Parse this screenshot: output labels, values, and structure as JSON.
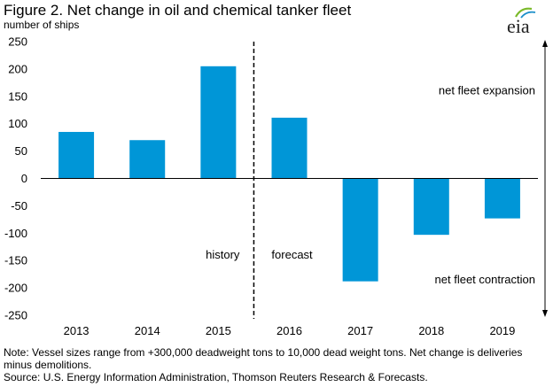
{
  "header": {
    "title": "Figure 2. Net change in oil and chemical tanker fleet",
    "subtitle": "number of ships",
    "logo_text": "eia"
  },
  "footer": {
    "note": "Note: Vessel sizes range from +300,000 deadweight tons to 10,000 dead weight tons. Net change is deliveries minus demolitions.",
    "source": "Source: U.S. Energy Information Administration, Thomson Reuters Research & Forecasts."
  },
  "colors": {
    "bar": "#0096d7",
    "logo_green": "#7ab929",
    "logo_blue": "#1a8ec9"
  },
  "chart_data": {
    "type": "bar",
    "title": "Figure 2. Net change in oil and chemical tanker fleet",
    "ylabel": "number of ships",
    "categories": [
      "2013",
      "2014",
      "2015",
      "2016",
      "2017",
      "2018",
      "2019"
    ],
    "values": [
      85,
      70,
      205,
      111,
      -188,
      -103,
      -73
    ],
    "ylim": [
      -250,
      250
    ],
    "yticks": [
      "250",
      "200",
      "150",
      "100",
      "50",
      "0",
      "-50",
      "-100",
      "-150",
      "-200",
      "-250"
    ],
    "grid": false,
    "annotations": {
      "history": "history",
      "forecast": "forecast",
      "expansion": "net fleet expansion",
      "contraction": "net fleet contraction"
    }
  }
}
